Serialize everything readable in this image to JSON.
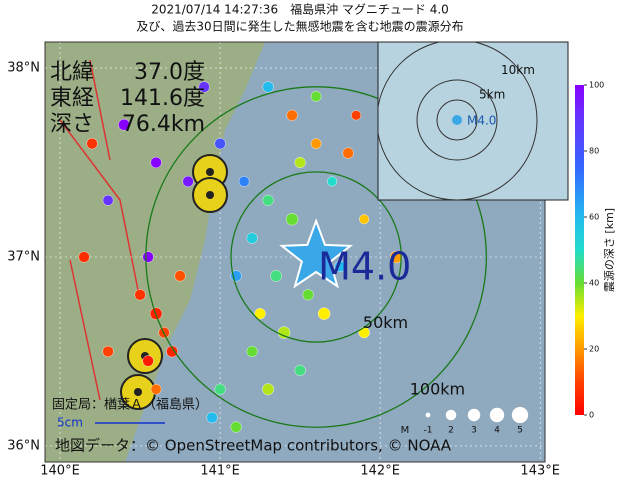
{
  "title": "2021/07/14 14:27:36　福島県沖 マグニチュード 4.0",
  "subtitle": "及び、過去30日間に発生した無感地震を含む地震の震源分布",
  "info": [
    {
      "key": "北緯",
      "value": "37.0度"
    },
    {
      "key": "東経",
      "value": "141.6度"
    },
    {
      "key": "深さ",
      "value": "76.4km"
    }
  ],
  "map": {
    "xlim": [
      139.906,
      143.03
    ],
    "ylim": [
      35.915,
      38.138
    ],
    "xticks": [
      {
        "value": 140,
        "label": "140°E"
      },
      {
        "value": 141,
        "label": "141°E"
      },
      {
        "value": 142,
        "label": "142°E"
      },
      {
        "value": 143,
        "label": "143°E"
      }
    ],
    "yticks": [
      {
        "value": 36,
        "label": "36°N"
      },
      {
        "value": 37,
        "label": "37°N"
      },
      {
        "value": 38,
        "label": "38°N"
      }
    ]
  },
  "epicenter": {
    "lon": 141.6,
    "lat": 37.0,
    "label": "M4.0"
  },
  "rings": [
    {
      "value": 50,
      "label": "50km"
    },
    {
      "value": 100,
      "label": "100km"
    }
  ],
  "events": {
    "lon": [
      141.3,
      141.45,
      141.5,
      141.7,
      141.2,
      141.35,
      141.55,
      141.4,
      141.25,
      141.6,
      141.8,
      141.9,
      141.75,
      141.65,
      141.2,
      141.1,
      141.15,
      141.0,
      140.8,
      140.6,
      140.4,
      140.3,
      140.55,
      140.5,
      140.6,
      140.65,
      140.7,
      140.55,
      140.75,
      140.6,
      140.2,
      140.15,
      140.3,
      141.0,
      141.3,
      141.9,
      142.1,
      141.45,
      141.3,
      141.6,
      140.9,
      141.85,
      141.1,
      140.95,
      141.5
    ],
    "lat": [
      37.3,
      37.2,
      37.5,
      37.4,
      37.1,
      36.9,
      36.8,
      36.6,
      36.7,
      37.6,
      37.55,
      37.2,
      36.95,
      36.7,
      36.5,
      36.9,
      37.4,
      37.6,
      37.4,
      37.5,
      37.7,
      37.3,
      37.0,
      36.8,
      36.7,
      36.6,
      36.5,
      36.45,
      36.9,
      36.3,
      37.6,
      37.0,
      36.5,
      36.3,
      36.3,
      36.6,
      37.0,
      37.75,
      37.9,
      37.85,
      37.9,
      37.75,
      36.1,
      36.15,
      36.4
    ],
    "depth": [
      45,
      40,
      35,
      50,
      55,
      45,
      40,
      35,
      30,
      20,
      15,
      25,
      60,
      30,
      40,
      65,
      70,
      80,
      95,
      100,
      100,
      90,
      100,
      8,
      5,
      10,
      6,
      4,
      12,
      15,
      8,
      7,
      10,
      45,
      35,
      30,
      20,
      15,
      60,
      40,
      90,
      10,
      40,
      60,
      45
    ],
    "mag": [
      1,
      1.5,
      1,
      0.5,
      1,
      1.2,
      1,
      1.5,
      1,
      0.8,
      1,
      0.5,
      1,
      1.5,
      1,
      1,
      0.8,
      1,
      1,
      1,
      1.2,
      0.8,
      1,
      1,
      1.5,
      1,
      1.2,
      1,
      1,
      0.8,
      1,
      1,
      1,
      1,
      1.3,
      1,
      1.5,
      1,
      1,
      0.8,
      1,
      0.5,
      1,
      1,
      1
    ]
  },
  "inset": {
    "rings": [
      {
        "value": 5,
        "label": "5km"
      },
      {
        "value": 10,
        "label": "10km"
      }
    ],
    "label": "M4.0"
  },
  "colorbar": {
    "title": "震源の深さ [km]",
    "lim": [
      0,
      100
    ],
    "ticks": [
      0,
      20,
      40,
      60,
      80,
      100
    ]
  },
  "mag_legend": {
    "title": "M",
    "values": [
      -1,
      2,
      3,
      4,
      5
    ]
  },
  "station": "固定局：楢葉Ａ（福島県）",
  "scale": "5cm",
  "credit": "地図データ：© OpenStreetMap contributors, © NOAA"
}
